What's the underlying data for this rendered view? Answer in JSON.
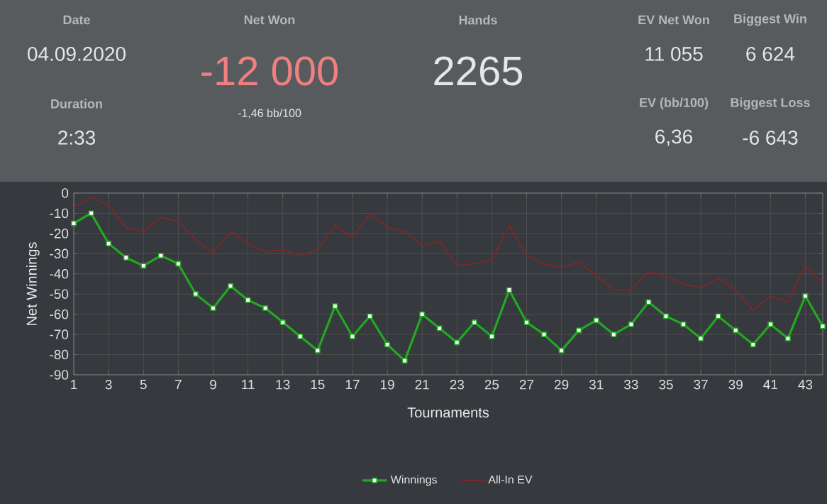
{
  "chart_data": [
    {
      "type": "other",
      "annotations": [
        "Date",
        "04.09.2020",
        "Duration",
        "2:33",
        "Net Won",
        "-12 000",
        "-1,46 bb/100",
        "Hands",
        "2265",
        "EV Net Won",
        "11 055",
        "Biggest Win",
        "6 624",
        "EV (bb/100)",
        "6,36",
        "Biggest Loss",
        "-6 643"
      ]
    },
    {
      "type": "line",
      "xlabel": "Tournaments",
      "ylabel": "Net Winnings",
      "x": [
        1,
        2,
        3,
        4,
        5,
        6,
        7,
        8,
        9,
        10,
        11,
        12,
        13,
        14,
        15,
        16,
        17,
        18,
        19,
        20,
        21,
        22,
        23,
        24,
        25,
        26,
        27,
        28,
        29,
        30,
        31,
        32,
        33,
        34,
        35,
        36,
        37,
        38,
        39,
        40,
        41,
        42,
        43,
        44
      ],
      "series": [
        {
          "name": "Winnings",
          "color": "#22a822",
          "marker": "square",
          "values": [
            -15,
            -10,
            -25,
            -32,
            -36,
            -31,
            -35,
            -50,
            -57,
            -46,
            -53,
            -57,
            -64,
            -71,
            -78,
            -56,
            -71,
            -61,
            -75,
            -83,
            -60,
            -67,
            -74,
            -64,
            -71,
            -48,
            -64,
            -70,
            -78,
            -68,
            -63,
            -70,
            -65,
            -54,
            -61,
            -65,
            -72,
            -61,
            -68,
            -75,
            -65,
            -72,
            -51,
            -66
          ]
        },
        {
          "name": "All-In EV",
          "color": "#8b2424",
          "marker": "none",
          "values": [
            -7,
            -2,
            -6,
            -17,
            -19,
            -12,
            -14,
            -23,
            -30,
            -19,
            -25,
            -29,
            -28,
            -31,
            -28,
            -16,
            -22,
            -10,
            -17,
            -19,
            -26,
            -24,
            -36,
            -35,
            -33,
            -16,
            -31,
            -35,
            -37,
            -34,
            -41,
            -48,
            -48,
            -39,
            -41,
            -45,
            -47,
            -42,
            -48,
            -58,
            -51,
            -54,
            -36,
            -44
          ]
        }
      ],
      "xlim": [
        1,
        44
      ],
      "xticks": [
        1,
        3,
        5,
        7,
        9,
        11,
        13,
        15,
        17,
        19,
        21,
        23,
        25,
        27,
        29,
        31,
        33,
        35,
        37,
        39,
        41,
        43
      ],
      "ylim": [
        -90,
        0
      ],
      "yticks": [
        -90,
        -80,
        -70,
        -60,
        -50,
        -40,
        -30,
        -20,
        -10,
        0
      ],
      "grid": true,
      "legend": "bottom",
      "line_style": "solid"
    }
  ]
}
